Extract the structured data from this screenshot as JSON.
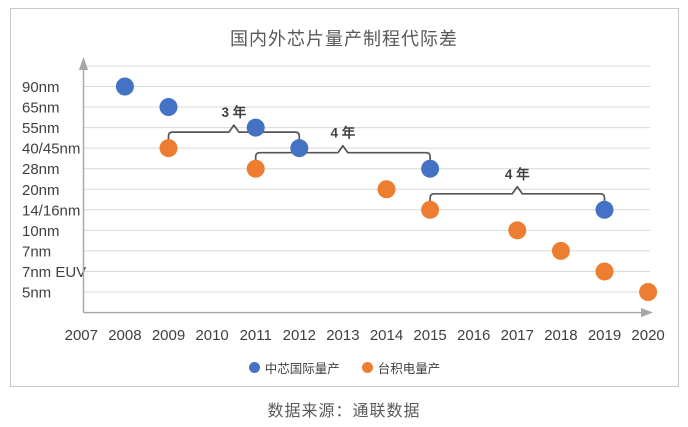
{
  "source_note": "数据来源：通联数据",
  "chart_data": {
    "type": "scatter",
    "title": "国内外芯片量产制程代际差",
    "xlabel": "",
    "ylabel": "",
    "grid": true,
    "legend_position": "bottom",
    "x_ticks": [
      2007,
      2008,
      2009,
      2010,
      2011,
      2012,
      2013,
      2014,
      2015,
      2016,
      2017,
      2018,
      2019,
      2020
    ],
    "y_ticks": [
      "90nm",
      "65nm",
      "55nm",
      "40/45nm",
      "28nm",
      "20nm",
      "14/16nm",
      "10nm",
      "7nm",
      "7nm EUV",
      "5nm"
    ],
    "colors": {
      "smic_blue": "#4472C4",
      "tsmc_orange": "#ED7D31",
      "grid": "#D9D9D9",
      "axis": "#A6A6A6",
      "bracket": "#555555",
      "tick_text": "#404040",
      "title_text": "#595959"
    },
    "series": [
      {
        "name": "中芯国际量产",
        "color": "#4472C4",
        "points": [
          {
            "year": 2008,
            "node": "90nm"
          },
          {
            "year": 2009,
            "node": "65nm"
          },
          {
            "year": 2011,
            "node": "55nm"
          },
          {
            "year": 2012,
            "node": "40/45nm"
          },
          {
            "year": 2015,
            "node": "28nm"
          },
          {
            "year": 2019,
            "node": "14/16nm"
          }
        ]
      },
      {
        "name": "台积电量产",
        "color": "#ED7D31",
        "points": [
          {
            "year": 2009,
            "node": "40/45nm"
          },
          {
            "year": 2011,
            "node": "28nm"
          },
          {
            "year": 2014,
            "node": "20nm"
          },
          {
            "year": 2015,
            "node": "14/16nm"
          },
          {
            "year": 2017,
            "node": "10nm"
          },
          {
            "year": 2018,
            "node": "7nm"
          },
          {
            "year": 2019,
            "node": "7nm EUV"
          },
          {
            "year": 2020,
            "node": "5nm"
          }
        ]
      }
    ],
    "annotations": [
      {
        "label": "3 年",
        "from_year": 2009,
        "to_year": 2012,
        "node": "40/45nm"
      },
      {
        "label": "4 年",
        "from_year": 2011,
        "to_year": 2015,
        "node": "28nm"
      },
      {
        "label": "4 年",
        "from_year": 2015,
        "to_year": 2019,
        "node": "14/16nm"
      }
    ]
  }
}
